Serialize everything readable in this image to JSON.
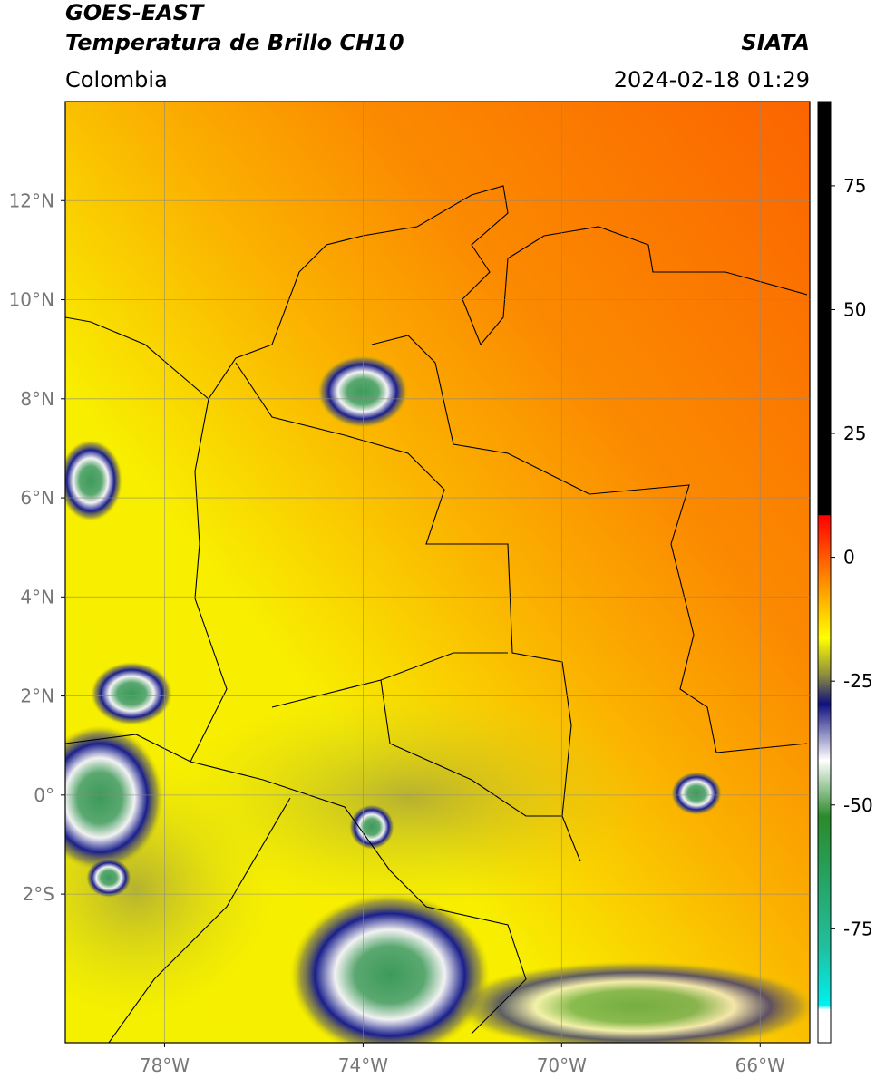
{
  "header": {
    "title": "GOES-EAST",
    "subtitle": "Temperatura de Brillo CH10",
    "source": "SIATA",
    "region": "Colombia",
    "datetime": "2024-02-18 01:29"
  },
  "map": {
    "lonlim": [
      -80,
      -65
    ],
    "latlim": [
      -5,
      14
    ],
    "xticks": [
      {
        "value": -78,
        "label": "78°W"
      },
      {
        "value": -74,
        "label": "74°W"
      },
      {
        "value": -70,
        "label": "70°W"
      },
      {
        "value": -66,
        "label": "66°W"
      }
    ],
    "yticks": [
      {
        "value": 12,
        "label": "12°N"
      },
      {
        "value": 10,
        "label": "10°N"
      },
      {
        "value": 8,
        "label": "8°N"
      },
      {
        "value": 6,
        "label": "6°N"
      },
      {
        "value": 4,
        "label": "4°N"
      },
      {
        "value": 2,
        "label": "2°N"
      },
      {
        "value": 0,
        "label": "0°"
      },
      {
        "value": -2,
        "label": "2°S"
      }
    ],
    "grid": true
  },
  "colorbar": {
    "lim": [
      -98,
      92
    ],
    "ticks": [
      75,
      50,
      25,
      0,
      -25,
      -50,
      -75
    ]
  }
}
